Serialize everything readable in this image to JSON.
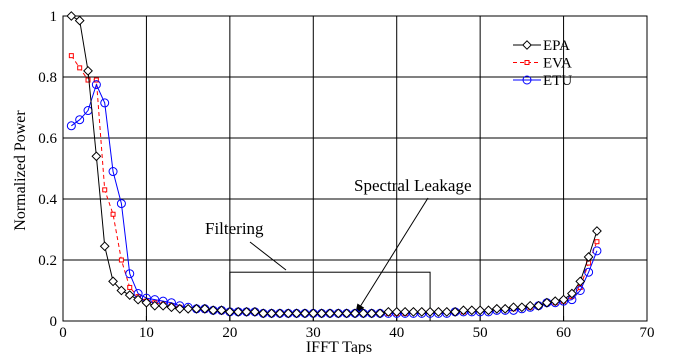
{
  "chart_data": {
    "type": "line",
    "xlabel": "IFFT Taps",
    "ylabel": "Normalized Power",
    "xlim": [
      0,
      70
    ],
    "ylim": [
      0,
      1
    ],
    "xticks": [
      0,
      10,
      20,
      30,
      40,
      50,
      60,
      70
    ],
    "yticks": [
      0,
      0.2,
      0.4,
      0.6,
      0.8,
      1
    ],
    "grid": true,
    "legend_position": "top-right",
    "colors": {
      "EPA": "#000000",
      "EVA": "#ff0000",
      "ETU": "#0000ff"
    },
    "series": [
      {
        "name": "EPA",
        "marker": "diamond",
        "line": "solid",
        "x": [
          1,
          2,
          3,
          4,
          5,
          6,
          7,
          8,
          9,
          10,
          11,
          12,
          13,
          14,
          15,
          16,
          17,
          18,
          19,
          20,
          21,
          22,
          23,
          24,
          25,
          26,
          27,
          28,
          29,
          30,
          31,
          32,
          33,
          34,
          35,
          36,
          37,
          38,
          39,
          40,
          41,
          42,
          43,
          44,
          45,
          46,
          47,
          48,
          49,
          50,
          51,
          52,
          53,
          54,
          55,
          56,
          57,
          58,
          59,
          60,
          61,
          62,
          63,
          64
        ],
        "values": [
          1.0,
          0.985,
          0.82,
          0.54,
          0.245,
          0.13,
          0.1,
          0.085,
          0.07,
          0.06,
          0.05,
          0.05,
          0.045,
          0.04,
          0.04,
          0.04,
          0.04,
          0.035,
          0.035,
          0.03,
          0.03,
          0.03,
          0.03,
          0.025,
          0.025,
          0.025,
          0.025,
          0.025,
          0.025,
          0.025,
          0.025,
          0.025,
          0.025,
          0.025,
          0.025,
          0.025,
          0.025,
          0.025,
          0.03,
          0.03,
          0.03,
          0.03,
          0.03,
          0.03,
          0.03,
          0.03,
          0.03,
          0.035,
          0.035,
          0.035,
          0.035,
          0.04,
          0.04,
          0.045,
          0.045,
          0.05,
          0.05,
          0.06,
          0.065,
          0.07,
          0.09,
          0.13,
          0.21,
          0.295
        ]
      },
      {
        "name": "EVA",
        "marker": "square",
        "line": "dashed",
        "x": [
          1,
          2,
          3,
          4,
          5,
          6,
          7,
          8,
          9,
          10,
          11,
          12,
          13,
          14,
          15,
          16,
          17,
          18,
          19,
          20,
          21,
          22,
          23,
          24,
          25,
          26,
          27,
          28,
          29,
          30,
          31,
          32,
          33,
          34,
          35,
          36,
          37,
          38,
          39,
          40,
          41,
          42,
          43,
          44,
          45,
          46,
          47,
          48,
          49,
          50,
          51,
          52,
          53,
          54,
          55,
          56,
          57,
          58,
          59,
          60,
          61,
          62,
          63,
          64
        ],
        "values": [
          0.87,
          0.83,
          0.79,
          0.79,
          0.43,
          0.35,
          0.2,
          0.11,
          0.08,
          0.065,
          0.06,
          0.055,
          0.05,
          0.045,
          0.04,
          0.04,
          0.035,
          0.035,
          0.03,
          0.03,
          0.03,
          0.03,
          0.03,
          0.025,
          0.025,
          0.025,
          0.025,
          0.025,
          0.025,
          0.025,
          0.025,
          0.025,
          0.025,
          0.025,
          0.025,
          0.025,
          0.025,
          0.025,
          0.025,
          0.025,
          0.025,
          0.03,
          0.03,
          0.03,
          0.03,
          0.03,
          0.03,
          0.03,
          0.035,
          0.035,
          0.035,
          0.04,
          0.04,
          0.04,
          0.045,
          0.045,
          0.05,
          0.06,
          0.06,
          0.065,
          0.08,
          0.11,
          0.19,
          0.26
        ]
      },
      {
        "name": "ETU",
        "marker": "circle",
        "line": "solid",
        "x": [
          1,
          2,
          3,
          4,
          5,
          6,
          7,
          8,
          9,
          10,
          11,
          12,
          13,
          14,
          15,
          16,
          17,
          18,
          19,
          20,
          21,
          22,
          23,
          24,
          25,
          26,
          27,
          28,
          29,
          30,
          31,
          32,
          33,
          34,
          35,
          36,
          37,
          38,
          39,
          40,
          41,
          42,
          43,
          44,
          45,
          46,
          47,
          48,
          49,
          50,
          51,
          52,
          53,
          54,
          55,
          56,
          57,
          58,
          59,
          60,
          61,
          62,
          63,
          64
        ],
        "values": [
          0.64,
          0.66,
          0.69,
          0.775,
          0.715,
          0.49,
          0.385,
          0.155,
          0.09,
          0.075,
          0.07,
          0.065,
          0.06,
          0.05,
          0.045,
          0.04,
          0.04,
          0.035,
          0.035,
          0.03,
          0.03,
          0.03,
          0.03,
          0.025,
          0.025,
          0.025,
          0.025,
          0.025,
          0.025,
          0.025,
          0.025,
          0.025,
          0.025,
          0.025,
          0.025,
          0.025,
          0.025,
          0.025,
          0.025,
          0.025,
          0.025,
          0.025,
          0.025,
          0.025,
          0.025,
          0.025,
          0.03,
          0.03,
          0.03,
          0.03,
          0.03,
          0.035,
          0.035,
          0.035,
          0.04,
          0.045,
          0.05,
          0.06,
          0.06,
          0.065,
          0.07,
          0.1,
          0.16,
          0.23
        ]
      }
    ],
    "annotations": [
      {
        "text": "Filtering",
        "kind": "label"
      },
      {
        "text": "Spectral Leakage",
        "kind": "arrow"
      }
    ],
    "filter_box": {
      "x_range": [
        20,
        44
      ],
      "y_range": [
        0,
        0.16
      ]
    },
    "leakage_arrow_target": {
      "x": 35,
      "y": 0.02
    }
  }
}
